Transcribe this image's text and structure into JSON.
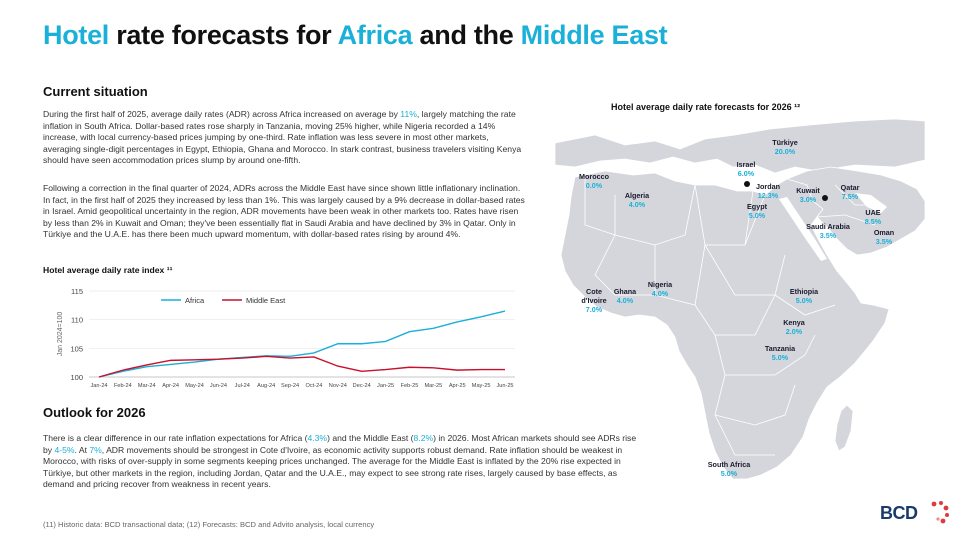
{
  "title": {
    "p1": "Hotel ",
    "p2": "rate forecasts for ",
    "p3": "Africa",
    "p4": " and the ",
    "p5": "Middle East"
  },
  "current": {
    "heading": "Current situation",
    "para1": {
      "a": "During the first half of 2025, average daily rates (ADR) across Africa increased on average by ",
      "b": "11%",
      "c": ", largely matching the rate inflation in South Africa. Dollar-based rates rose sharply in Tanzania, moving 25% higher, while Nigeria recorded a 14% increase, with local currency-based prices jumping by one-third. Rate inflation was less severe in most other markets, averaging single-digit percentages in Egypt, Ethiopia, Ghana and Morocco. In stark contrast, business travelers visiting Kenya should have seen accommodation prices slump by around one-fifth."
    },
    "para2": "Following a correction in the final quarter of 2024, ADRs across the Middle East have since shown little inflationary inclination. In fact, in the first half of 2025 they increased by less than 1%. This was largely caused by a 9% decrease in dollar-based rates in Israel. Amid geopolitical uncertainty in the region, ADR movements have been weak in other markets too. Rates have risen by less than 2% in Kuwait and Oman; they've been essentially flat in Saudi Arabia and have declined by 3% in Qatar. Only in Türkiye and the U.A.E. has there been much upward momentum, with dollar-based rates rising by around 4%."
  },
  "chart_heading": "Hotel average daily rate index ¹¹",
  "chart_data": {
    "type": "line",
    "ylabel": "Jan 2024=100",
    "ylim": [
      100,
      115
    ],
    "yticks": [
      100,
      105,
      110,
      115
    ],
    "categories": [
      "Jan-24",
      "Feb-24",
      "Mar-24",
      "Apr-24",
      "May-24",
      "Jun-24",
      "Jul-24",
      "Aug-24",
      "Sep-24",
      "Oct-24",
      "Nov-24",
      "Dec-24",
      "Jan-25",
      "Feb-25",
      "Mar-25",
      "Apr-25",
      "May-25",
      "Jun-25"
    ],
    "series": [
      {
        "name": "Africa",
        "color": "#1ab0d8",
        "values": [
          100,
          101,
          101.8,
          102.2,
          102.6,
          103.1,
          103.4,
          103.7,
          103.6,
          104.2,
          105.8,
          105.8,
          106.2,
          107.9,
          108.5,
          109.6,
          110.5,
          111.5
        ]
      },
      {
        "name": "Middle East",
        "color": "#c8102e",
        "values": [
          100,
          101.2,
          102.1,
          102.9,
          103.0,
          103.1,
          103.3,
          103.6,
          103.3,
          103.5,
          101.9,
          101.0,
          101.3,
          101.7,
          101.6,
          101.2,
          101.3,
          101.3
        ]
      }
    ]
  },
  "outlook": {
    "heading": "Outlook for 2026",
    "a": "There is a clear difference in our rate inflation expectations for Africa (",
    "b": "4.3%",
    "c": ") and the Middle East (",
    "d": "8.2%",
    "e": ") in 2026. Most African markets should see ADRs rise by ",
    "f": "4-5%",
    "g": ". At ",
    "h": "7%",
    "i": ", ADR movements should be strongest in Cote d'Ivoire, as economic activity supports robust demand. Rate inflation should be weakest in Morocco, with risks of over-supply in some segments keeping prices unchanged. The average for the Middle East is inflated by the 20% rise expected in Türkiye, but other markets in the region, including Jordan, Qatar and the U.A.E., may expect to see strong rate rises, largely caused by base effects, as demand and pricing recover from weakness in recent years."
  },
  "footnote": "(11) Historic data: BCD transactional data; (12) Forecasts: BCD and Advito analysis, local currency",
  "map": {
    "title": "Hotel average daily rate forecasts for 2026 ¹²",
    "countries": [
      {
        "name": "Morocco",
        "value": "0.0%"
      },
      {
        "name": "Algeria",
        "value": "4.0%"
      },
      {
        "name": "Israel",
        "value": "6.0%"
      },
      {
        "name": "Türkiye",
        "value": "20.0%"
      },
      {
        "name": "Jordan",
        "value": "12.3%"
      },
      {
        "name": "Egypt",
        "value": "5.0%"
      },
      {
        "name": "Kuwait",
        "value": "3.0%"
      },
      {
        "name": "Qatar",
        "value": "7.5%"
      },
      {
        "name": "UAE",
        "value": "8.5%"
      },
      {
        "name": "Saudi Arabia",
        "value": "3.5%"
      },
      {
        "name": "Oman",
        "value": "3.5%"
      },
      {
        "name": "Nigeria",
        "value": "4.0%"
      },
      {
        "name": "Ghana",
        "value": "4.0%"
      },
      {
        "name": "Cote\nd'Ivoire",
        "value": "7.0%"
      },
      {
        "name": "Ethiopia",
        "value": "5.0%"
      },
      {
        "name": "Kenya",
        "value": "2.0%"
      },
      {
        "name": "Tanzania",
        "value": "5.0%"
      },
      {
        "name": "South Africa",
        "value": "5.0%"
      }
    ]
  },
  "logo": {
    "text": "BCD"
  },
  "colors": {
    "accent": "#1ab0d8",
    "middle_east": "#c8102e",
    "map_fill": "#d4d6db"
  }
}
